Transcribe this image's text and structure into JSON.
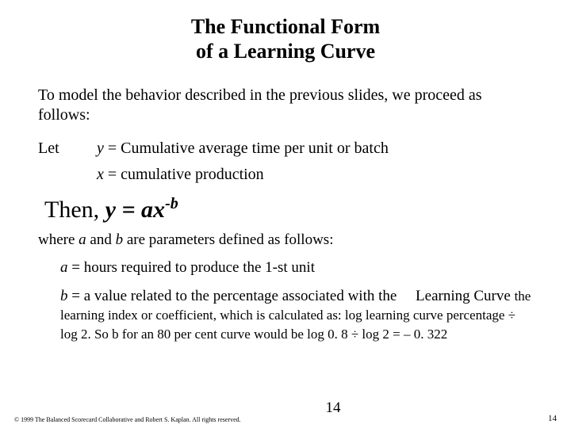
{
  "title_line1": "The Functional Form",
  "title_line2": "of a Learning Curve",
  "intro": "To model the behavior described in the previous slides, we proceed as follows:",
  "let_label": "Let",
  "y_var": "y",
  "y_def": " = Cumulative average time per unit or batch",
  "x_var": "x",
  "x_def": " = cumulative production",
  "then_label": "Then, ",
  "eq_lhs": "y = ax",
  "eq_sup": "-b",
  "where_pre": "where ",
  "where_a": "a",
  "where_mid": " and ",
  "where_b": "b",
  "where_post": " are parameters defined as follows:",
  "a_var": "a",
  "a_def": " = hours required to produce the 1-st unit",
  "b_var": "b",
  "b_lead": " = a value related to the percentage associated with the     Learning Curve ",
  "b_cont": "the learning index or coefficient, which is calculated as: log learning curve percentage ÷ log 2. So b for an 80 per cent curve would be log 0. 8 ÷ log 2 = – 0. 322",
  "copyright": "© 1999 The Balanced Scorecard Collaborative and Robert S. Kaplan. All rights reserved.",
  "page_center": "14",
  "page_right": "14"
}
